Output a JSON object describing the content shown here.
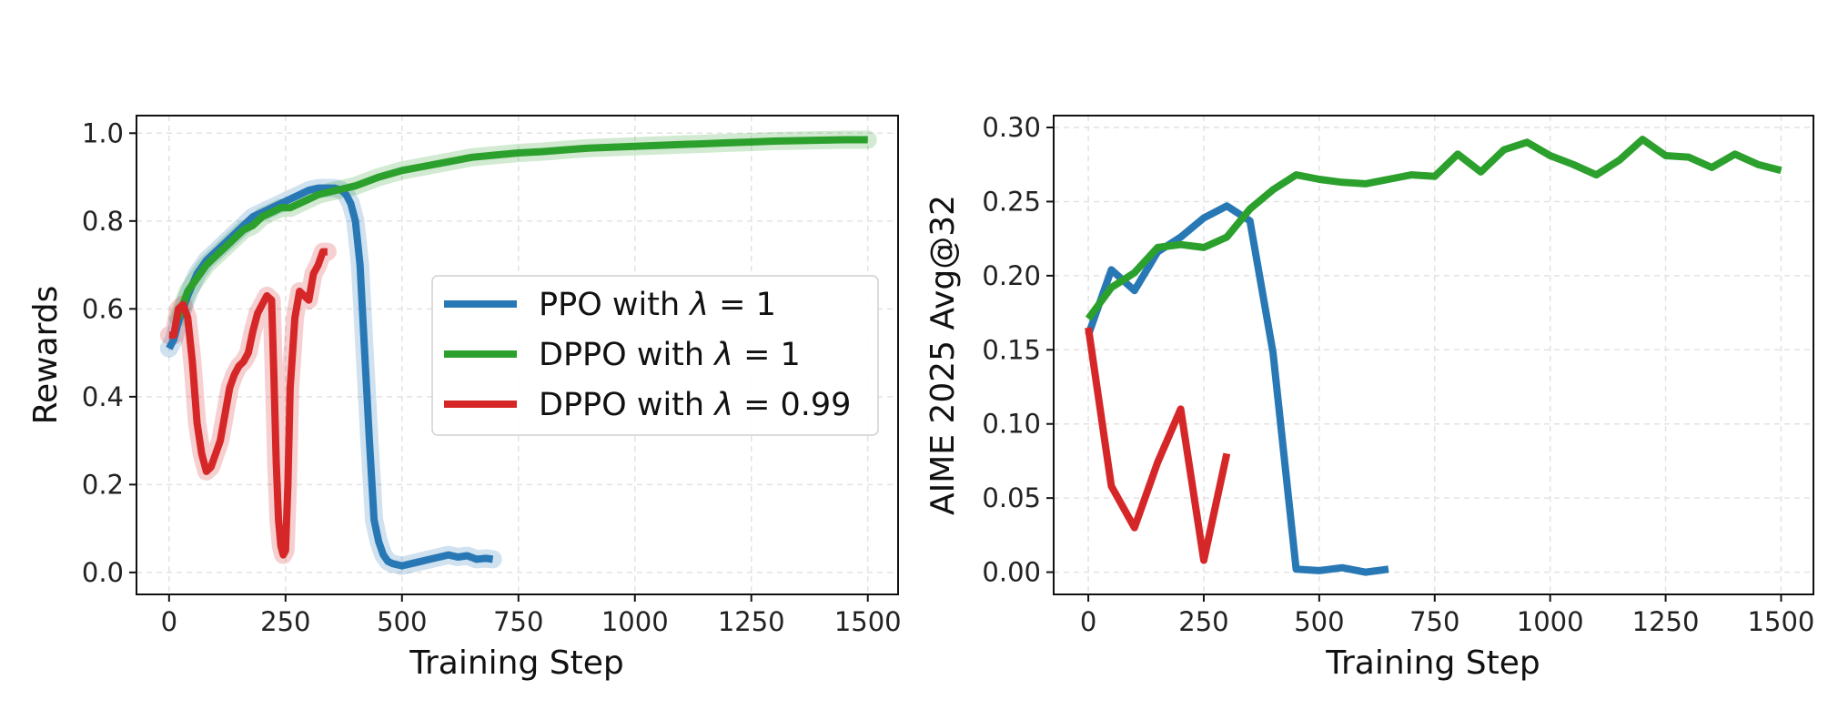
{
  "chart_data": [
    {
      "type": "line",
      "xlabel": "Training Step",
      "ylabel": "Rewards",
      "xlim": [
        -70,
        1565
      ],
      "ylim": [
        -0.05,
        1.04
      ],
      "xticks": [
        0,
        250,
        500,
        750,
        1000,
        1250,
        1500
      ],
      "yticks": [
        0.0,
        0.2,
        0.4,
        0.6,
        0.8,
        1.0
      ],
      "ytick_format": "0.0",
      "grid": true,
      "legend": "center-right",
      "series": [
        {
          "name": "PPO with λ = 1",
          "legend_label": "PPO with ",
          "legend_param": "λ",
          "legend_value": " = 1",
          "color": "#2878b5",
          "points": [
            [
              0,
              0.51
            ],
            [
              10,
              0.53
            ],
            [
              20,
              0.57
            ],
            [
              40,
              0.63
            ],
            [
              60,
              0.68
            ],
            [
              80,
              0.71
            ],
            [
              100,
              0.73
            ],
            [
              120,
              0.75
            ],
            [
              140,
              0.77
            ],
            [
              160,
              0.79
            ],
            [
              180,
              0.81
            ],
            [
              200,
              0.82
            ],
            [
              220,
              0.83
            ],
            [
              240,
              0.84
            ],
            [
              260,
              0.85
            ],
            [
              280,
              0.86
            ],
            [
              300,
              0.87
            ],
            [
              320,
              0.875
            ],
            [
              340,
              0.875
            ],
            [
              355,
              0.875
            ],
            [
              370,
              0.87
            ],
            [
              380,
              0.86
            ],
            [
              390,
              0.84
            ],
            [
              400,
              0.8
            ],
            [
              410,
              0.7
            ],
            [
              420,
              0.5
            ],
            [
              430,
              0.3
            ],
            [
              440,
              0.12
            ],
            [
              450,
              0.07
            ],
            [
              460,
              0.04
            ],
            [
              470,
              0.025
            ],
            [
              480,
              0.02
            ],
            [
              500,
              0.015
            ],
            [
              520,
              0.02
            ],
            [
              540,
              0.025
            ],
            [
              560,
              0.03
            ],
            [
              580,
              0.035
            ],
            [
              600,
              0.04
            ],
            [
              620,
              0.035
            ],
            [
              640,
              0.038
            ],
            [
              660,
              0.03
            ],
            [
              680,
              0.032
            ],
            [
              695,
              0.03
            ]
          ]
        },
        {
          "name": "DPPO with λ = 1",
          "legend_label": "DPPO with ",
          "legend_param": "λ",
          "legend_value": " = 1",
          "color": "#2ca02c",
          "points": [
            [
              20,
              0.58
            ],
            [
              30,
              0.61
            ],
            [
              40,
              0.64
            ],
            [
              60,
              0.67
            ],
            [
              80,
              0.7
            ],
            [
              100,
              0.72
            ],
            [
              120,
              0.74
            ],
            [
              140,
              0.76
            ],
            [
              160,
              0.78
            ],
            [
              180,
              0.79
            ],
            [
              200,
              0.81
            ],
            [
              220,
              0.82
            ],
            [
              240,
              0.83
            ],
            [
              260,
              0.83
            ],
            [
              280,
              0.84
            ],
            [
              300,
              0.85
            ],
            [
              320,
              0.86
            ],
            [
              340,
              0.865
            ],
            [
              360,
              0.87
            ],
            [
              380,
              0.875
            ],
            [
              400,
              0.88
            ],
            [
              450,
              0.9
            ],
            [
              500,
              0.915
            ],
            [
              550,
              0.925
            ],
            [
              600,
              0.935
            ],
            [
              650,
              0.945
            ],
            [
              700,
              0.95
            ],
            [
              750,
              0.955
            ],
            [
              800,
              0.958
            ],
            [
              850,
              0.962
            ],
            [
              900,
              0.966
            ],
            [
              950,
              0.968
            ],
            [
              1000,
              0.97
            ],
            [
              1050,
              0.972
            ],
            [
              1100,
              0.974
            ],
            [
              1150,
              0.976
            ],
            [
              1200,
              0.978
            ],
            [
              1250,
              0.98
            ],
            [
              1300,
              0.982
            ],
            [
              1350,
              0.983
            ],
            [
              1400,
              0.984
            ],
            [
              1450,
              0.985
            ],
            [
              1500,
              0.985
            ]
          ]
        },
        {
          "name": "DPPO with λ = 0.99",
          "legend_label": "DPPO with ",
          "legend_param": "λ",
          "legend_value": " = 0.99",
          "color": "#d62728",
          "points": [
            [
              0,
              0.54
            ],
            [
              10,
              0.54
            ],
            [
              20,
              0.6
            ],
            [
              30,
              0.61
            ],
            [
              40,
              0.58
            ],
            [
              50,
              0.48
            ],
            [
              60,
              0.34
            ],
            [
              70,
              0.27
            ],
            [
              80,
              0.23
            ],
            [
              90,
              0.24
            ],
            [
              100,
              0.27
            ],
            [
              110,
              0.3
            ],
            [
              120,
              0.36
            ],
            [
              130,
              0.42
            ],
            [
              140,
              0.45
            ],
            [
              150,
              0.47
            ],
            [
              160,
              0.48
            ],
            [
              170,
              0.5
            ],
            [
              180,
              0.55
            ],
            [
              190,
              0.59
            ],
            [
              200,
              0.61
            ],
            [
              210,
              0.63
            ],
            [
              220,
              0.62
            ],
            [
              225,
              0.45
            ],
            [
              230,
              0.25
            ],
            [
              235,
              0.12
            ],
            [
              240,
              0.06
            ],
            [
              245,
              0.04
            ],
            [
              250,
              0.05
            ],
            [
              255,
              0.2
            ],
            [
              260,
              0.42
            ],
            [
              270,
              0.58
            ],
            [
              280,
              0.64
            ],
            [
              290,
              0.63
            ],
            [
              300,
              0.62
            ],
            [
              310,
              0.68
            ],
            [
              320,
              0.7
            ],
            [
              330,
              0.73
            ],
            [
              340,
              0.73
            ]
          ]
        }
      ]
    },
    {
      "type": "line",
      "xlabel": "Training Step",
      "ylabel": "AIME 2025 Avg@32",
      "xlim": [
        -75,
        1570
      ],
      "ylim": [
        -0.015,
        0.308
      ],
      "xticks": [
        0,
        250,
        500,
        750,
        1000,
        1250,
        1500
      ],
      "yticks": [
        0.0,
        0.05,
        0.1,
        0.15,
        0.2,
        0.25,
        0.3
      ],
      "ytick_format": "0.00",
      "grid": true,
      "series": [
        {
          "name": "PPO with λ = 1",
          "color": "#2878b5",
          "points": [
            [
              0,
              0.16
            ],
            [
              50,
              0.204
            ],
            [
              100,
              0.19
            ],
            [
              150,
              0.216
            ],
            [
              200,
              0.226
            ],
            [
              250,
              0.239
            ],
            [
              300,
              0.247
            ],
            [
              350,
              0.237
            ],
            [
              400,
              0.148
            ],
            [
              450,
              0.002
            ],
            [
              500,
              0.001
            ],
            [
              550,
              0.003
            ],
            [
              600,
              0.0
            ],
            [
              650,
              0.002
            ]
          ]
        },
        {
          "name": "DPPO with λ = 1",
          "color": "#2ca02c",
          "points": [
            [
              0,
              0.171
            ],
            [
              50,
              0.192
            ],
            [
              100,
              0.202
            ],
            [
              150,
              0.219
            ],
            [
              200,
              0.221
            ],
            [
              250,
              0.219
            ],
            [
              300,
              0.226
            ],
            [
              350,
              0.245
            ],
            [
              400,
              0.258
            ],
            [
              450,
              0.268
            ],
            [
              500,
              0.265
            ],
            [
              550,
              0.263
            ],
            [
              600,
              0.262
            ],
            [
              650,
              0.265
            ],
            [
              700,
              0.268
            ],
            [
              750,
              0.267
            ],
            [
              800,
              0.282
            ],
            [
              850,
              0.27
            ],
            [
              900,
              0.285
            ],
            [
              950,
              0.29
            ],
            [
              1000,
              0.281
            ],
            [
              1050,
              0.275
            ],
            [
              1100,
              0.268
            ],
            [
              1150,
              0.278
            ],
            [
              1200,
              0.292
            ],
            [
              1250,
              0.281
            ],
            [
              1300,
              0.28
            ],
            [
              1350,
              0.273
            ],
            [
              1400,
              0.282
            ],
            [
              1450,
              0.275
            ],
            [
              1500,
              0.271
            ]
          ]
        },
        {
          "name": "DPPO with λ = 0.99",
          "color": "#d62728",
          "points": [
            [
              0,
              0.165
            ],
            [
              50,
              0.058
            ],
            [
              100,
              0.03
            ],
            [
              150,
              0.074
            ],
            [
              200,
              0.11
            ],
            [
              250,
              0.008
            ],
            [
              300,
              0.08
            ]
          ]
        }
      ]
    }
  ]
}
